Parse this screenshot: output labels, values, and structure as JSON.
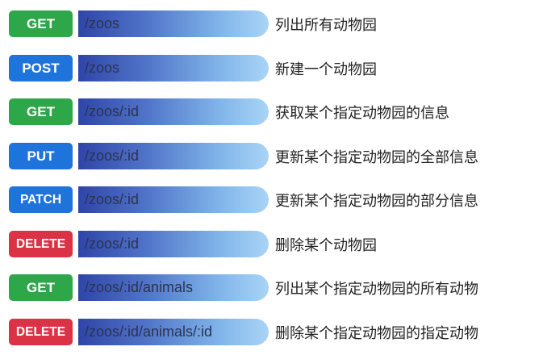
{
  "colors": {
    "GET": "#2ea64a",
    "POST": "#1f74db",
    "PUT": "#1f74db",
    "PATCH": "#1f74db",
    "DELETE": "#dc3245"
  },
  "endpoints": [
    {
      "method": "GET",
      "path": "/zoos",
      "description": "列出所有动物园"
    },
    {
      "method": "POST",
      "path": "/zoos",
      "description": "新建一个动物园"
    },
    {
      "method": "GET",
      "path": "/zoos/:id",
      "description": "获取某个指定动物园的信息"
    },
    {
      "method": "PUT",
      "path": "/zoos/:id",
      "description": "更新某个指定动物园的全部信息"
    },
    {
      "method": "PATCH",
      "path": "/zoos/:id",
      "description": "更新某个指定动物园的部分信息"
    },
    {
      "method": "DELETE",
      "path": "/zoos/:id",
      "description": "删除某个动物园"
    },
    {
      "method": "GET",
      "path": "/zoos/:id/animals",
      "description": "列出某个指定动物园的所有动物"
    },
    {
      "method": "DELETE",
      "path": "/zoos/:id/animals/:id",
      "description": "删除某个指定动物园的指定动物"
    }
  ]
}
